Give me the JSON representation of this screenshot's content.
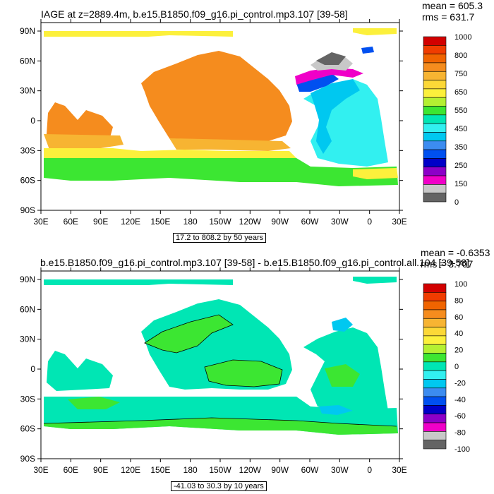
{
  "panel1": {
    "title": "IAGE at z=2889.4m, b.e15.B1850.f09_g16.pi_control.mp3.107 [39-58]",
    "mean_label": "mean = 605.3",
    "rms_label": "rms = 631.7",
    "range_label": "17.2 to 808.2 by 50 years",
    "colorbar_labels": [
      "1000",
      "800",
      "750",
      "650",
      "550",
      "450",
      "350",
      "250",
      "150",
      "0"
    ],
    "colorbar_colors": [
      "#d20000",
      "#f03c00",
      "#f06400",
      "#f58c1e",
      "#f7b432",
      "#fcd837",
      "#fcf03c",
      "#b4f032",
      "#3ce632",
      "#00e6b4",
      "#32f0f0",
      "#00c8f0",
      "#3c8cf0",
      "#0050f0",
      "#0000c8",
      "#8c00c8",
      "#f000c8",
      "#c8c8c8",
      "#646464"
    ]
  },
  "panel2": {
    "title": "b.e15.B1850.f09_g16.pi_control.mp3.107 [39-58] - b.e15.B1850.f09_g16.pi_control.all.104 [39-58]",
    "mean_label": "mean = -0.6353",
    "rms_label": "rms = 3.707",
    "range_label": "-41.03 to 30.3 by 10 years",
    "colorbar_labels": [
      "100",
      "80",
      "60",
      "40",
      "20",
      "0",
      "-20",
      "-40",
      "-60",
      "-80",
      "-100"
    ],
    "colorbar_colors": [
      "#d20000",
      "#f03c00",
      "#f06400",
      "#f58c1e",
      "#f7b432",
      "#fcd837",
      "#fcf03c",
      "#b4f032",
      "#3ce632",
      "#00e6b4",
      "#32f0f0",
      "#00c8f0",
      "#3c8cf0",
      "#0050f0",
      "#0000c8",
      "#8c00c8",
      "#f000c8",
      "#c8c8c8",
      "#646464"
    ]
  },
  "axes": {
    "lat_labels": [
      "90N",
      "60N",
      "30N",
      "0",
      "30S",
      "60S",
      "90S"
    ],
    "lon_labels": [
      "30E",
      "60E",
      "90E",
      "120E",
      "150E",
      "180",
      "150W",
      "120W",
      "90W",
      "60W",
      "30W",
      "0",
      "30E"
    ]
  },
  "palette": {
    "p1_ocean_main": "#f58c1e",
    "p1_ocean_light": "#f7b432",
    "p1_yellow": "#fcf03c",
    "p1_green": "#3ce632",
    "p1_cyan": "#32f0f0",
    "p1_light_cyan": "#00e6b4",
    "p1_blue": "#00c8f0",
    "p1_deep_blue": "#0050f0",
    "p1_magenta": "#f000c8",
    "p1_purple": "#8c00c8",
    "p1_gray": "#c8c8c8",
    "p1_dark_gray": "#646464",
    "p2_cyan": "#00e6b4",
    "p2_light_cyan": "#32f0f0",
    "p2_green": "#3ce632",
    "p2_blue": "#00c8f0"
  }
}
